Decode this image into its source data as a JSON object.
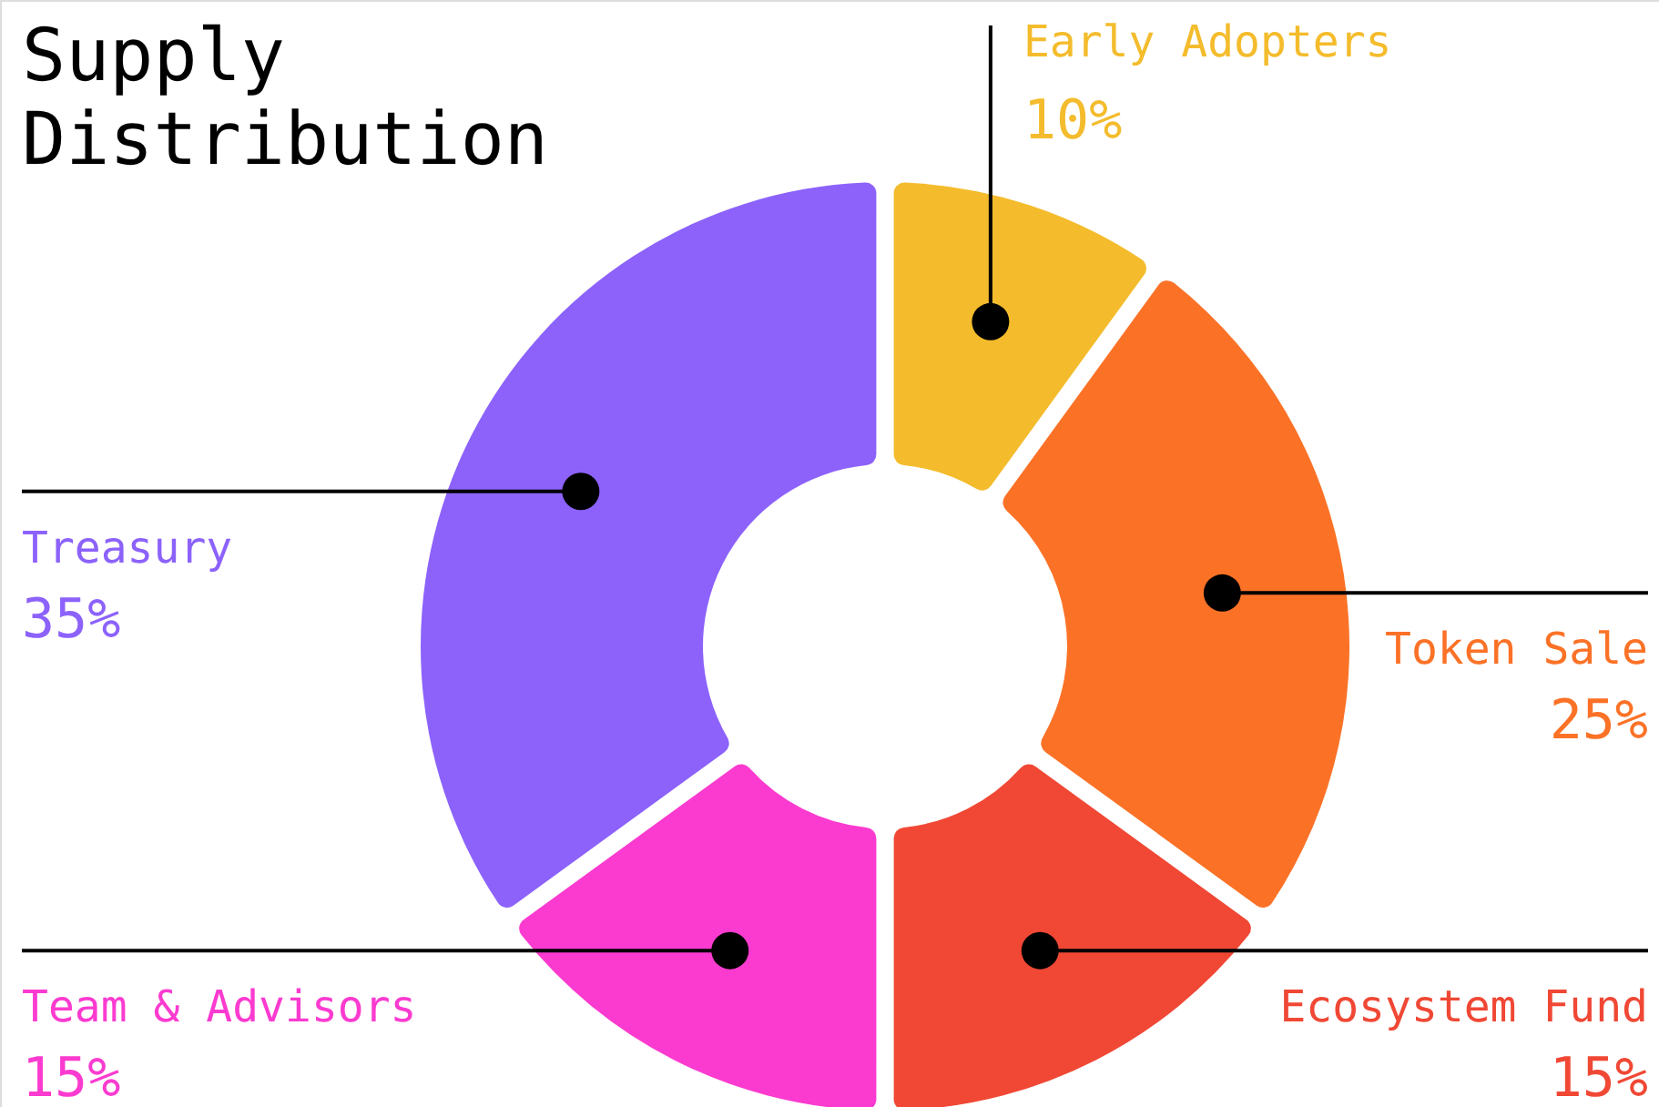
{
  "chart_data": {
    "type": "donut",
    "title": "Supply Distribution",
    "categories": [
      "Early Adopters",
      "Token Sale",
      "Ecosystem Fund",
      "Team & Advisors",
      "Treasury"
    ],
    "values": [
      10,
      25,
      15,
      15,
      35
    ],
    "colors": [
      "#f4bc2c",
      "#fb7227",
      "#f04835",
      "#fb3bd0",
      "#8c62fb"
    ],
    "value_labels": [
      "10%",
      "25%",
      "15%",
      "15%",
      "35%"
    ]
  }
}
